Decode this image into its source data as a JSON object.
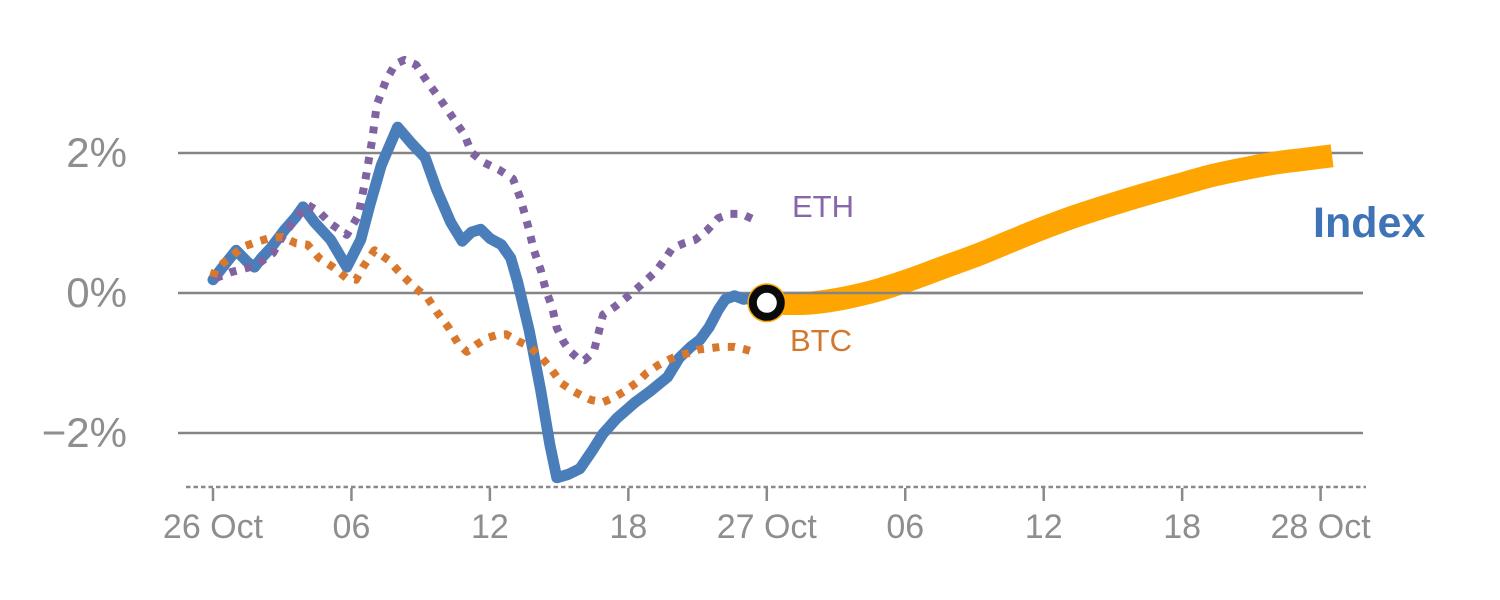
{
  "chart_data": {
    "type": "line",
    "title": "",
    "xlabel": "",
    "ylabel": "",
    "x_unit": "hours since 26 Oct 00:00",
    "y_unit": "percent change",
    "ylim": [
      -3.1,
      3.6
    ],
    "xlim": [
      -1.5,
      50
    ],
    "grid": "horizontal",
    "legend_position": "end-of-line labels",
    "yticks": [
      {
        "label": "2%",
        "value": 2
      },
      {
        "label": "0%",
        "value": 0
      },
      {
        "label": "−2%",
        "value": -2
      }
    ],
    "xticks": [
      {
        "label": "26 Oct",
        "hour": 0
      },
      {
        "label": "06",
        "hour": 6
      },
      {
        "label": "12",
        "hour": 12
      },
      {
        "label": "18",
        "hour": 18
      },
      {
        "label": "27 Oct",
        "hour": 24
      },
      {
        "label": "06",
        "hour": 30
      },
      {
        "label": "12",
        "hour": 36
      },
      {
        "label": "18",
        "hour": 42
      },
      {
        "label": "28 Oct",
        "hour": 48
      }
    ],
    "series": [
      {
        "name": "Index",
        "style": "solid",
        "points": [
          [
            0,
            0.19
          ],
          [
            0.4,
            0.36
          ],
          [
            1.0,
            0.61
          ],
          [
            1.5,
            0.44
          ],
          [
            1.8,
            0.37
          ],
          [
            2.1,
            0.5
          ],
          [
            2.5,
            0.64
          ],
          [
            3.1,
            0.9
          ],
          [
            3.6,
            1.09
          ],
          [
            3.9,
            1.23
          ],
          [
            4.4,
            1.01
          ],
          [
            5.1,
            0.76
          ],
          [
            5.8,
            0.37
          ],
          [
            6.4,
            0.76
          ],
          [
            6.8,
            1.26
          ],
          [
            7.3,
            1.83
          ],
          [
            8.0,
            2.37
          ],
          [
            8.6,
            2.14
          ],
          [
            9.2,
            1.93
          ],
          [
            9.7,
            1.47
          ],
          [
            10.3,
            1.01
          ],
          [
            10.8,
            0.74
          ],
          [
            11.2,
            0.87
          ],
          [
            11.6,
            0.91
          ],
          [
            12.0,
            0.78
          ],
          [
            12.5,
            0.69
          ],
          [
            12.9,
            0.5
          ],
          [
            13.2,
            0.16
          ],
          [
            13.7,
            -0.53
          ],
          [
            14.2,
            -1.39
          ],
          [
            14.6,
            -2.17
          ],
          [
            14.9,
            -2.64
          ],
          [
            15.4,
            -2.59
          ],
          [
            15.9,
            -2.51
          ],
          [
            16.4,
            -2.27
          ],
          [
            16.9,
            -2.01
          ],
          [
            17.5,
            -1.79
          ],
          [
            18.3,
            -1.56
          ],
          [
            19.0,
            -1.39
          ],
          [
            19.7,
            -1.2
          ],
          [
            20.2,
            -0.93
          ],
          [
            20.7,
            -0.77
          ],
          [
            21.1,
            -0.67
          ],
          [
            21.5,
            -0.49
          ],
          [
            21.9,
            -0.24
          ],
          [
            22.2,
            -0.09
          ],
          [
            22.6,
            -0.04
          ],
          [
            23.0,
            -0.09
          ],
          [
            23.5,
            -0.06
          ],
          [
            24.0,
            -0.14
          ]
        ]
      },
      {
        "name": "ETH",
        "style": "dotted",
        "points": [
          [
            0.1,
            0.21
          ],
          [
            0.8,
            0.3
          ],
          [
            1.5,
            0.36
          ],
          [
            1.9,
            0.4
          ],
          [
            2.3,
            0.5
          ],
          [
            2.6,
            0.57
          ],
          [
            3.0,
            0.8
          ],
          [
            3.6,
            1.07
          ],
          [
            4.1,
            1.26
          ],
          [
            4.6,
            1.16
          ],
          [
            5.1,
            0.99
          ],
          [
            5.8,
            0.83
          ],
          [
            6.3,
            1.11
          ],
          [
            6.6,
            1.61
          ],
          [
            6.9,
            2.19
          ],
          [
            7.1,
            2.69
          ],
          [
            7.5,
            3.04
          ],
          [
            7.9,
            3.27
          ],
          [
            8.3,
            3.33
          ],
          [
            8.8,
            3.26
          ],
          [
            9.3,
            3.01
          ],
          [
            9.8,
            2.79
          ],
          [
            10.4,
            2.5
          ],
          [
            10.9,
            2.26
          ],
          [
            11.2,
            2.01
          ],
          [
            11.7,
            1.87
          ],
          [
            12.4,
            1.76
          ],
          [
            13.0,
            1.63
          ],
          [
            13.3,
            1.37
          ],
          [
            13.5,
            1.14
          ],
          [
            13.7,
            0.9
          ],
          [
            13.9,
            0.62
          ],
          [
            14.2,
            0.33
          ],
          [
            14.4,
            0.07
          ],
          [
            14.7,
            -0.21
          ],
          [
            14.9,
            -0.5
          ],
          [
            15.2,
            -0.7
          ],
          [
            15.5,
            -0.84
          ],
          [
            15.8,
            -0.93
          ],
          [
            16.1,
            -0.96
          ],
          [
            16.5,
            -0.84
          ],
          [
            16.7,
            -0.58
          ],
          [
            16.9,
            -0.31
          ],
          [
            17.4,
            -0.2
          ],
          [
            17.9,
            -0.07
          ],
          [
            18.4,
            0.07
          ],
          [
            18.8,
            0.19
          ],
          [
            19.2,
            0.31
          ],
          [
            19.6,
            0.49
          ],
          [
            19.9,
            0.64
          ],
          [
            20.4,
            0.71
          ],
          [
            20.9,
            0.76
          ],
          [
            21.4,
            0.89
          ],
          [
            21.9,
            1.07
          ],
          [
            22.4,
            1.13
          ],
          [
            22.9,
            1.13
          ],
          [
            23.5,
            1.04
          ]
        ]
      },
      {
        "name": "BTC",
        "style": "dotted",
        "points": [
          [
            0,
            0.23
          ],
          [
            0.1,
            0.33
          ],
          [
            0.6,
            0.47
          ],
          [
            1.3,
            0.66
          ],
          [
            1.9,
            0.73
          ],
          [
            2.5,
            0.79
          ],
          [
            3.0,
            0.8
          ],
          [
            3.6,
            0.71
          ],
          [
            4.1,
            0.69
          ],
          [
            4.6,
            0.5
          ],
          [
            5.2,
            0.37
          ],
          [
            5.8,
            0.21
          ],
          [
            6.2,
            0.19
          ],
          [
            6.5,
            0.37
          ],
          [
            7.0,
            0.61
          ],
          [
            7.6,
            0.47
          ],
          [
            8.1,
            0.29
          ],
          [
            8.7,
            0.09
          ],
          [
            9.3,
            -0.07
          ],
          [
            9.7,
            -0.27
          ],
          [
            10.2,
            -0.49
          ],
          [
            10.6,
            -0.71
          ],
          [
            11.0,
            -0.84
          ],
          [
            11.4,
            -0.74
          ],
          [
            11.9,
            -0.64
          ],
          [
            12.3,
            -0.6
          ],
          [
            12.7,
            -0.59
          ],
          [
            13.3,
            -0.7
          ],
          [
            13.7,
            -0.76
          ],
          [
            14.2,
            -0.91
          ],
          [
            14.6,
            -1.06
          ],
          [
            15.1,
            -1.29
          ],
          [
            15.6,
            -1.4
          ],
          [
            16.0,
            -1.47
          ],
          [
            16.4,
            -1.53
          ],
          [
            16.9,
            -1.56
          ],
          [
            17.4,
            -1.49
          ],
          [
            17.9,
            -1.39
          ],
          [
            18.4,
            -1.27
          ],
          [
            18.8,
            -1.14
          ],
          [
            19.3,
            -1.03
          ],
          [
            19.7,
            -0.96
          ],
          [
            20.1,
            -0.9
          ],
          [
            20.6,
            -0.86
          ],
          [
            21.0,
            -0.81
          ],
          [
            21.5,
            -0.79
          ],
          [
            22.0,
            -0.77
          ],
          [
            22.6,
            -0.77
          ],
          [
            23.0,
            -0.8
          ],
          [
            23.6,
            -0.86
          ]
        ]
      },
      {
        "name": "Index forecast",
        "style": "band",
        "points": [
          [
            24.0,
            -0.14
          ],
          [
            25.0,
            -0.15
          ],
          [
            26.0,
            -0.14
          ],
          [
            27.4,
            -0.07
          ],
          [
            28.8,
            0.04
          ],
          [
            30.2,
            0.19
          ],
          [
            31.6,
            0.36
          ],
          [
            33.1,
            0.54
          ],
          [
            34.5,
            0.73
          ],
          [
            36.0,
            0.93
          ],
          [
            37.4,
            1.1
          ],
          [
            38.9,
            1.26
          ],
          [
            40.3,
            1.4
          ],
          [
            41.8,
            1.54
          ],
          [
            43.2,
            1.67
          ],
          [
            44.6,
            1.77
          ],
          [
            46.1,
            1.86
          ],
          [
            47.3,
            1.91
          ],
          [
            48.5,
            1.96
          ]
        ]
      }
    ],
    "marker": {
      "series": "Index",
      "hour": 24,
      "value": -0.14,
      "shape": "ring"
    }
  },
  "colors": {
    "index": "#4A7EBB",
    "index_label": "#3E74B5",
    "eth": "#8064A2",
    "eth_label": "#8667A9",
    "btc": "#D9782D",
    "btc_label": "#D2782E",
    "forecast": "#FFA502",
    "marker_fill": "#FFA502",
    "marker_ring": "#0A0A0A",
    "marker_center": "#FFFFFF",
    "grid": "#858585",
    "axis": "#8A8A8A",
    "axis_text": "#8E8E8E"
  }
}
